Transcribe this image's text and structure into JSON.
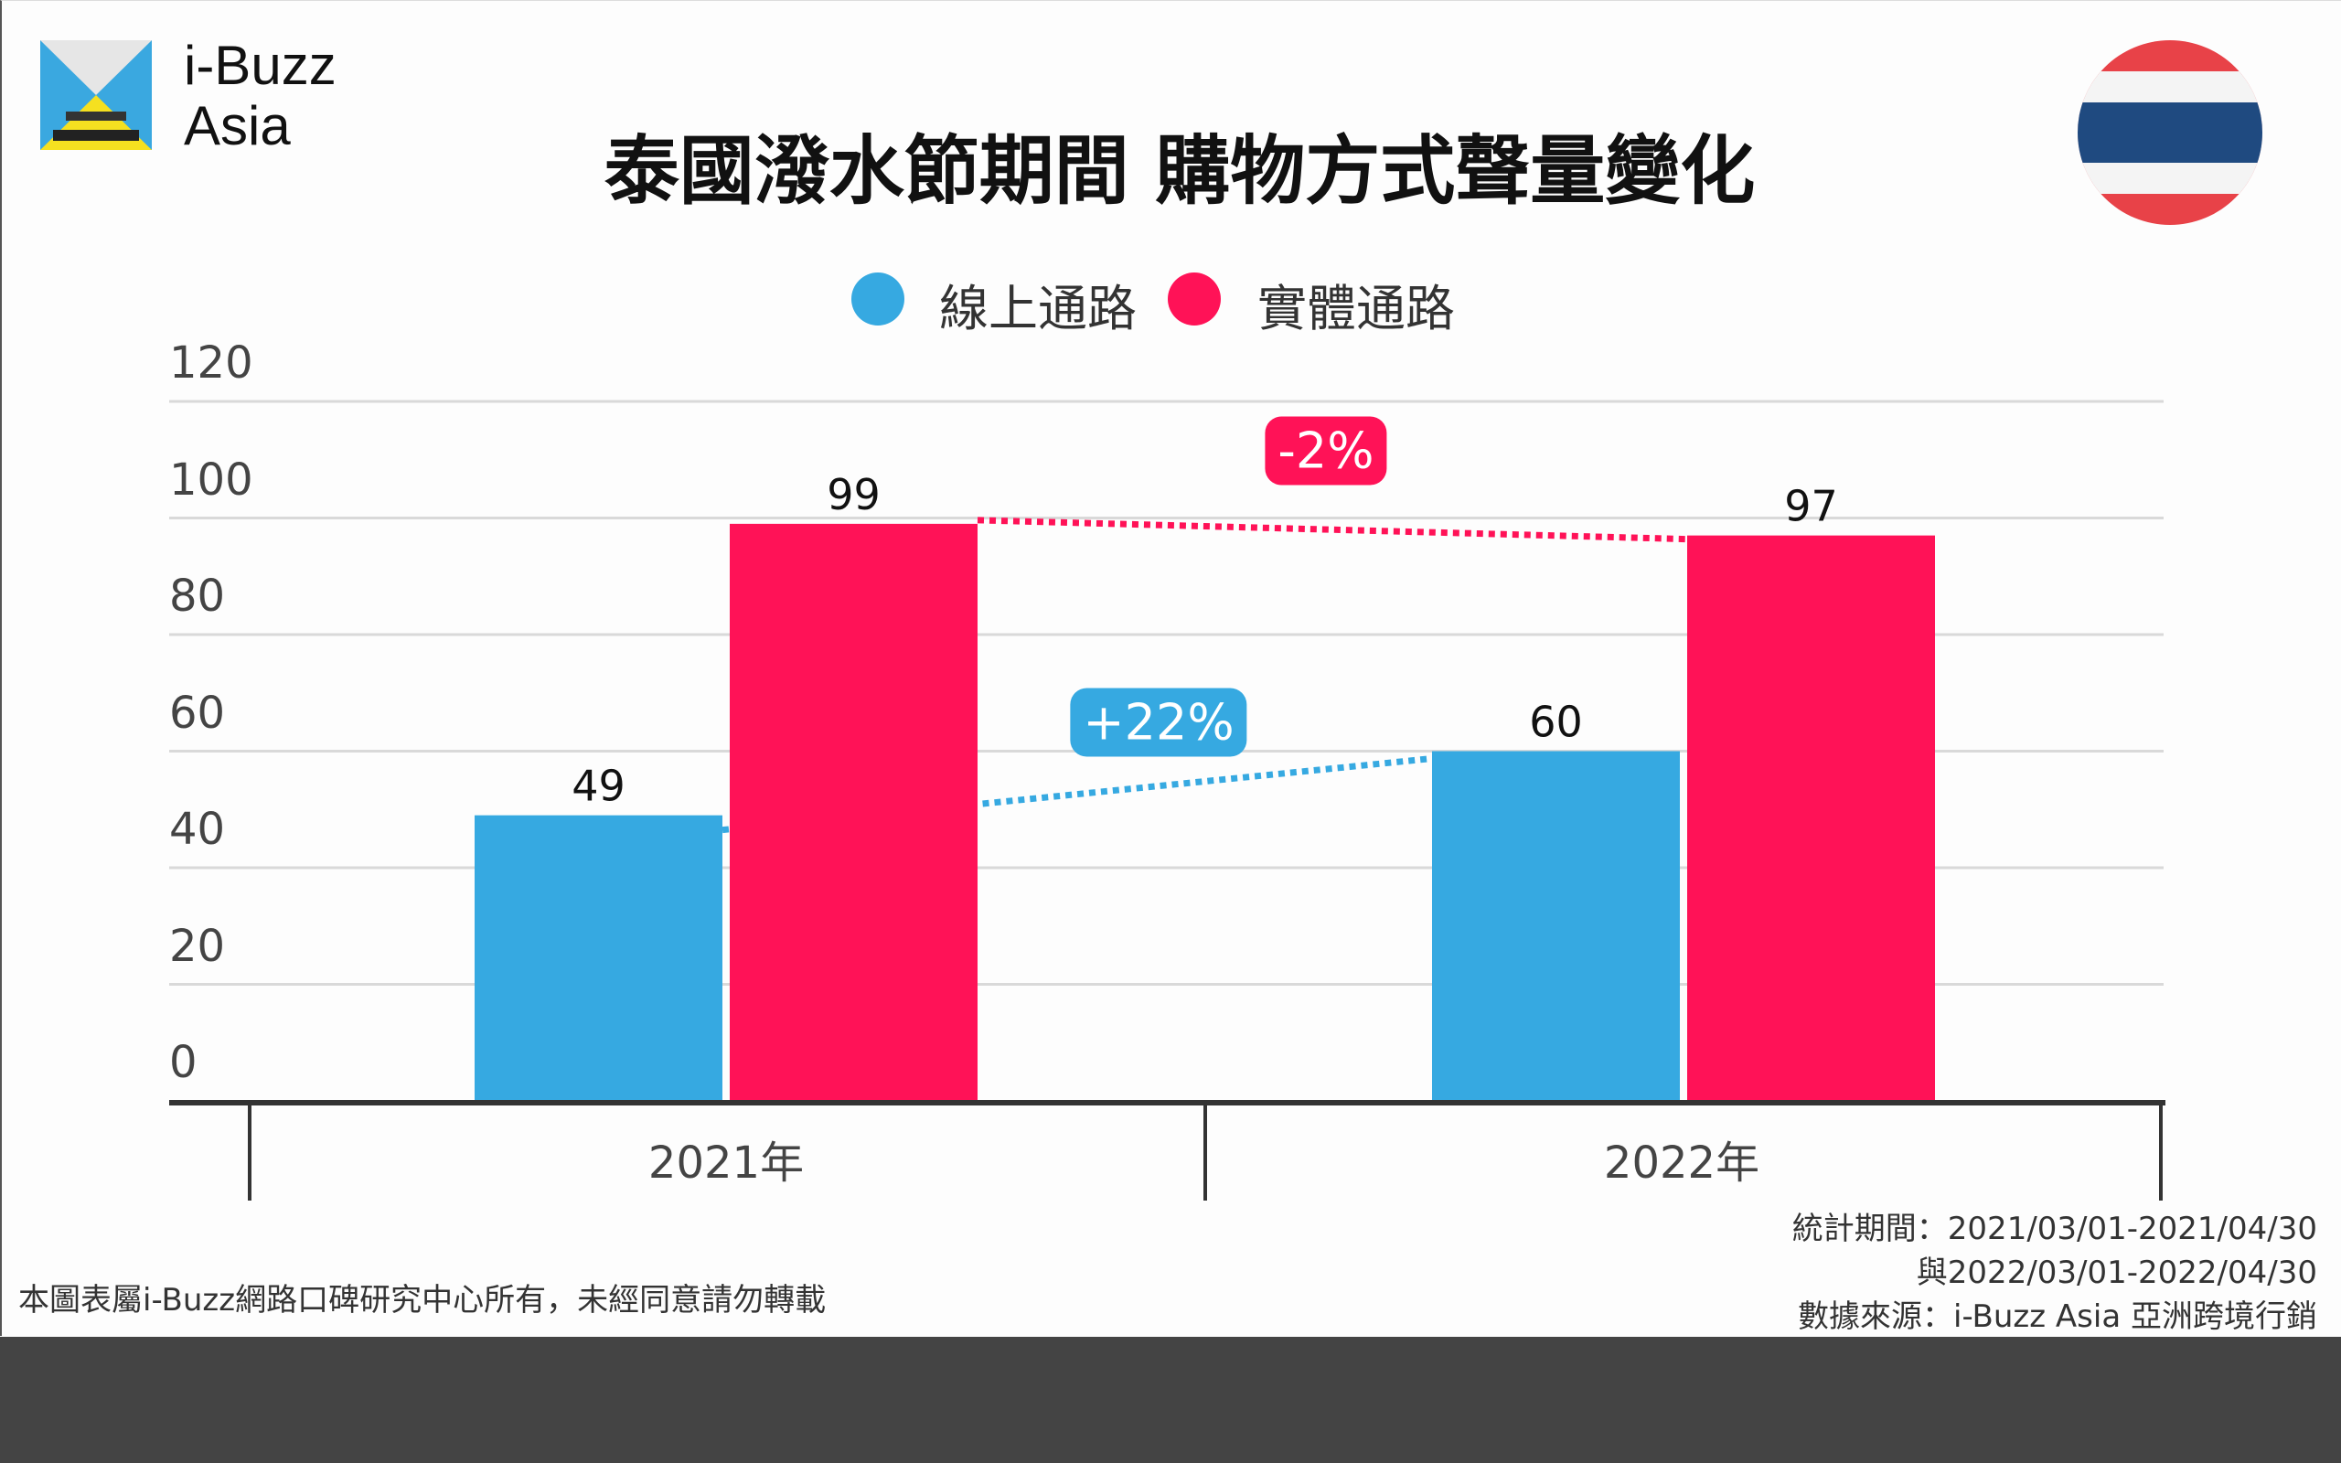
{
  "brand": {
    "line1": "i-Buzz",
    "line2": "Asia"
  },
  "flag": "thailand-flag",
  "colors": {
    "online": "#36a9e1",
    "offline": "#ff1257",
    "text": "#111111",
    "band": "#444444"
  },
  "chart_data": {
    "type": "bar",
    "title": "泰國潑水節期間 購物方式聲量變化",
    "categories": [
      "2021年",
      "2022年"
    ],
    "series": [
      {
        "name": "線上通路",
        "values": [
          49,
          60
        ],
        "color": "#36a9e1"
      },
      {
        "name": "實體通路",
        "values": [
          99,
          97
        ],
        "color": "#ff1257"
      }
    ],
    "ylim": [
      0,
      120
    ],
    "yticks": [
      0,
      20,
      40,
      60,
      80,
      100,
      120
    ],
    "grid": true,
    "legend": "top-center",
    "annotations": [
      {
        "series": "實體通路",
        "label": "-2%"
      },
      {
        "series": "線上通路",
        "label": "+22%"
      }
    ]
  },
  "footer": {
    "copyright": "本圖表屬i-Buzz網路口碑研究中心所有，未經同意請勿轉載",
    "period1": "統計期間：2021/03/01-2021/04/30",
    "period2": "與2022/03/01-2022/04/30",
    "source": "數據來源：i-Buzz Asia 亞洲跨境行銷"
  }
}
